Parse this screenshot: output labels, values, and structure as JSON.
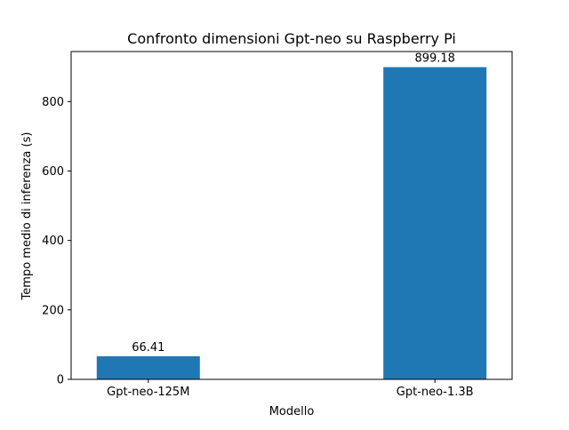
{
  "chart_data": {
    "type": "bar",
    "title": "Confronto dimensioni Gpt-neo su Raspberry Pi",
    "xlabel": "Modello",
    "ylabel": "Tempo medio di inferenza (s)",
    "categories": [
      "Gpt-neo-125M",
      "Gpt-neo-1.3B"
    ],
    "values": [
      66.41,
      899.18
    ],
    "data_labels": [
      "66.41",
      "899.18"
    ],
    "ylim": [
      0,
      944.14
    ],
    "yticks": [
      0,
      200,
      400,
      600,
      800
    ],
    "ytick_labels": [
      "0",
      "200",
      "400",
      "600",
      "800"
    ],
    "grid": false,
    "legend": "none",
    "colors": {
      "bar": "#1f77b4",
      "axis": "#000000",
      "background": "#ffffff"
    }
  }
}
